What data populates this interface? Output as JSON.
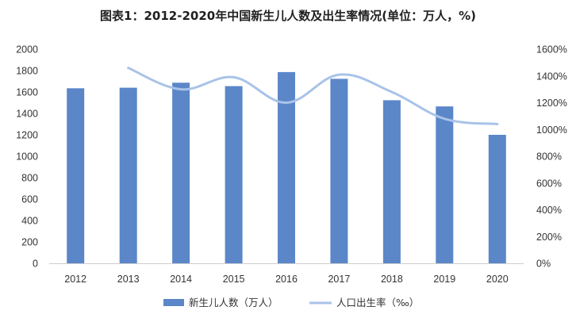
{
  "chart_data": {
    "type": "bar+line",
    "title": "图表1：2012-2020年中国新生儿人数及出生率情况(单位：万人，%)",
    "categories": [
      "2012",
      "2013",
      "2014",
      "2015",
      "2016",
      "2017",
      "2018",
      "2019",
      "2020"
    ],
    "series": [
      {
        "name": "新生儿人数（万人）",
        "type": "bar",
        "axis": "left",
        "color": "#5b87c9",
        "values": [
          1635,
          1640,
          1687,
          1655,
          1786,
          1723,
          1523,
          1465,
          1200
        ]
      },
      {
        "name": "人口出生率（‰）",
        "type": "line",
        "axis": "right",
        "color": "#a9c3e8",
        "values": [
          null,
          1460,
          1300,
          1390,
          1200,
          1410,
          1280,
          1080,
          1040
        ]
      }
    ],
    "left_axis": {
      "ylim": [
        0,
        2000
      ],
      "ticks": [
        "0",
        "200",
        "400",
        "600",
        "800",
        "1000",
        "1200",
        "1400",
        "1600",
        "1800",
        "2000"
      ]
    },
    "right_axis": {
      "ylim": [
        0,
        1600
      ],
      "ticks": [
        "0%",
        "200%",
        "400%",
        "600%",
        "800%",
        "1000%",
        "1200%",
        "1400%",
        "1600%"
      ]
    },
    "grid": false,
    "legend_position": "bottom"
  }
}
